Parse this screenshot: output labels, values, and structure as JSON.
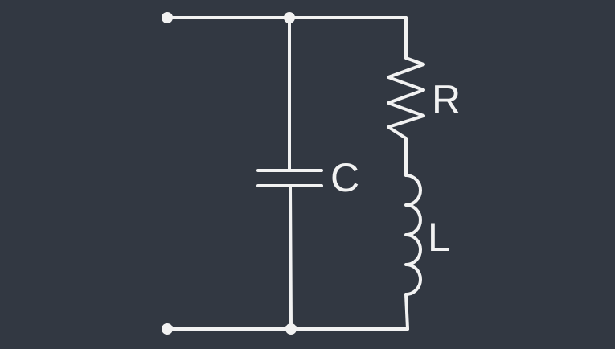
{
  "colors": {
    "background": "#323842",
    "line": "#f2f2f2"
  },
  "components": {
    "resistor": {
      "label": "R",
      "icon": "resistor-icon"
    },
    "capacitor": {
      "label": "C",
      "icon": "capacitor-icon"
    },
    "inductor": {
      "label": "L",
      "icon": "inductor-icon"
    }
  }
}
